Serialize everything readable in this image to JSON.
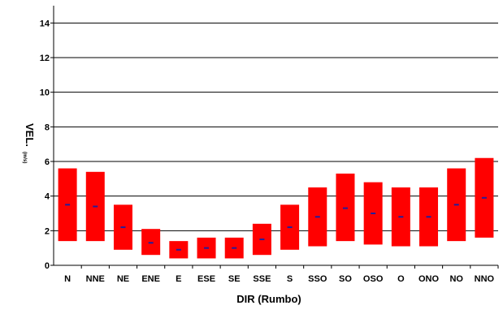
{
  "chart_data": {
    "type": "floating-bar",
    "title": "",
    "xlabel": "DIR (Rumbo)",
    "ylabel": {
      "main": "VEL.",
      "sub": "(m/s)"
    },
    "ylim": [
      0,
      15
    ],
    "yticks": [
      0,
      2,
      4,
      6,
      8,
      10,
      12,
      14
    ],
    "grid": true,
    "legend": "none",
    "categories": [
      "N",
      "NNE",
      "NE",
      "ENE",
      "E",
      "ESE",
      "SE",
      "SSE",
      "S",
      "SSO",
      "SO",
      "OSO",
      "O",
      "ONO",
      "NO",
      "NNO"
    ],
    "series": [
      {
        "role": "min",
        "values": [
          1.4,
          1.4,
          0.9,
          0.6,
          0.4,
          0.4,
          0.4,
          0.6,
          0.9,
          1.1,
          1.4,
          1.2,
          1.1,
          1.1,
          1.4,
          1.6
        ]
      },
      {
        "role": "max",
        "values": [
          5.6,
          5.4,
          3.5,
          2.1,
          1.4,
          1.6,
          1.6,
          2.4,
          3.5,
          4.5,
          5.3,
          4.8,
          4.5,
          4.5,
          5.6,
          6.2
        ]
      },
      {
        "role": "mean",
        "values": [
          3.5,
          3.4,
          2.2,
          1.3,
          0.9,
          1.0,
          1.0,
          1.5,
          2.2,
          2.8,
          3.3,
          3.0,
          2.8,
          2.8,
          3.5,
          3.9
        ]
      }
    ],
    "colors": {
      "bar": "#ff0000",
      "mean_marker": "#1f1f9e",
      "grid": "#000000"
    }
  }
}
